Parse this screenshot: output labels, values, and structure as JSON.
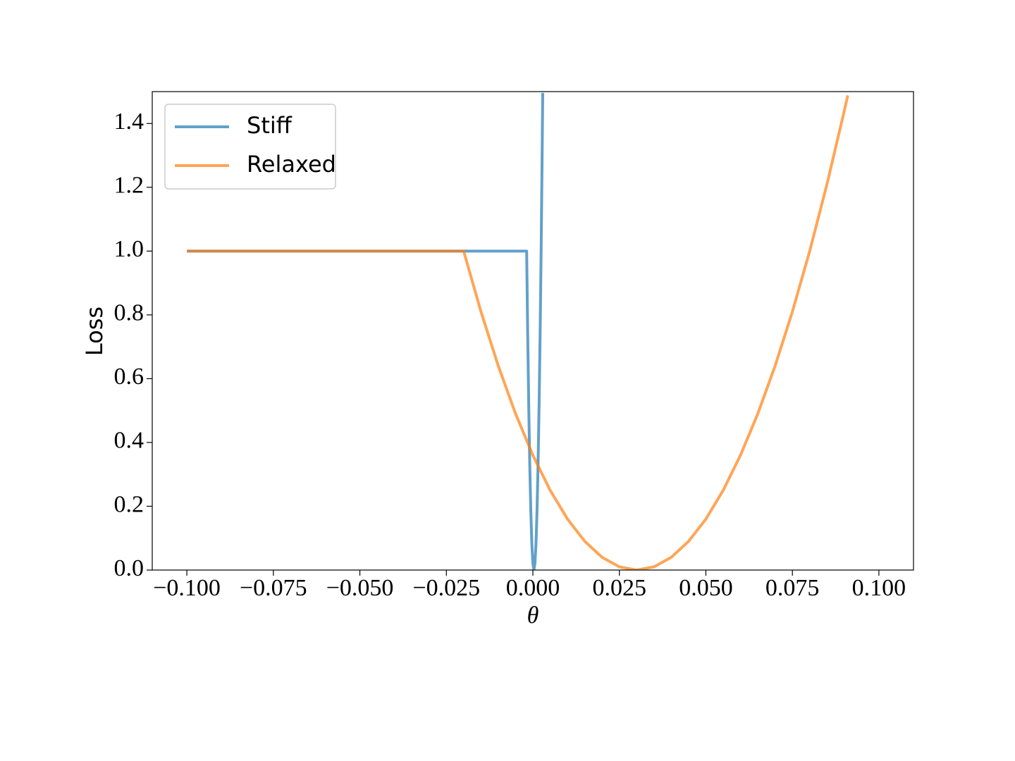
{
  "chart_data": {
    "type": "line",
    "x_label": "θ",
    "y_label": "Loss",
    "legend": "upper left",
    "alpha": 0.7,
    "xlim": [
      -0.11,
      0.11
    ],
    "ylim": [
      0,
      1.5
    ],
    "xticks": [
      {
        "value": -0.1,
        "label": "−0.100"
      },
      {
        "value": -0.075,
        "label": "−0.075"
      },
      {
        "value": -0.05,
        "label": "−0.050"
      },
      {
        "value": -0.025,
        "label": "−0.025"
      },
      {
        "value": 0,
        "label": "0.000"
      },
      {
        "value": 0.025,
        "label": "0.025"
      },
      {
        "value": 0.05,
        "label": "0.050"
      },
      {
        "value": 0.075,
        "label": "0.075"
      },
      {
        "value": 0.1,
        "label": "0.100"
      }
    ],
    "yticks": [
      {
        "value": 0,
        "label": "0.0"
      },
      {
        "value": 0.2,
        "label": "0.2"
      },
      {
        "value": 0.4,
        "label": "0.4"
      },
      {
        "value": 0.6,
        "label": "0.6"
      },
      {
        "value": 0.8,
        "label": "0.8"
      },
      {
        "value": 1,
        "label": "1.0"
      },
      {
        "value": 1.2,
        "label": "1.2"
      },
      {
        "value": 1.4,
        "label": "1.4"
      }
    ],
    "series": [
      {
        "name": "Stiff",
        "color": "#1f77b4",
        "x": [
          -0.1,
          -0.0018,
          -0.0015,
          -0.0012,
          -0.0009,
          -0.0006,
          -0.0003,
          0,
          0.0003,
          0.0006,
          0.0009,
          0.0012,
          0.0015,
          0.0018,
          0.0021,
          0.0024,
          0.0027,
          0.00285
        ],
        "values": [
          1.0,
          1.0,
          0.745,
          0.518,
          0.331,
          0.186,
          0.083,
          0.021,
          0,
          0.021,
          0.083,
          0.186,
          0.331,
          0.518,
          0.745,
          1.014,
          1.325,
          1.496
        ]
      },
      {
        "name": "Relaxed",
        "color": "#ff7f0e",
        "x": [
          -0.1,
          -0.02,
          -0.015,
          -0.01,
          -0.005,
          0,
          0.005,
          0.01,
          0.015,
          0.02,
          0.025,
          0.03,
          0.035,
          0.04,
          0.045,
          0.05,
          0.055,
          0.06,
          0.065,
          0.07,
          0.075,
          0.08,
          0.085,
          0.09,
          0.091
        ],
        "values": [
          1.0,
          1.0,
          0.81,
          0.64,
          0.49,
          0.36,
          0.25,
          0.16,
          0.09,
          0.04,
          0.01,
          0,
          0.01,
          0.04,
          0.09,
          0.16,
          0.25,
          0.36,
          0.49,
          0.64,
          0.81,
          1.0,
          1.21,
          1.44,
          1.488
        ]
      }
    ]
  }
}
